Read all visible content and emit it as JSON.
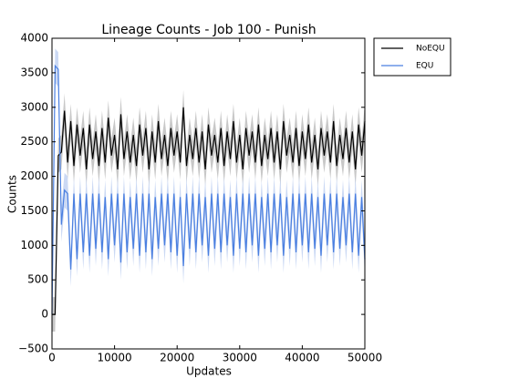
{
  "chart_data": {
    "type": "line",
    "title": "Lineage Counts - Job 100 - Punish",
    "xlabel": "Updates",
    "ylabel": "Counts",
    "xlim": [
      0,
      50000
    ],
    "xticks": [
      0,
      10000,
      20000,
      30000,
      40000,
      50000
    ],
    "ylim": [
      -500,
      4000
    ],
    "yticks": [
      {
        "value": -500,
        "label": "−500"
      },
      0,
      500,
      1000,
      1500,
      2000,
      2500,
      3000,
      3500,
      4000
    ],
    "legend": "outside-upper-right",
    "x": [
      0,
      500,
      1000,
      1500,
      2000,
      2500,
      3000,
      3500,
      4000,
      4500,
      5000,
      5500,
      6000,
      6500,
      7000,
      7500,
      8000,
      8500,
      9000,
      9500,
      10000,
      10500,
      11000,
      11500,
      12000,
      12500,
      13000,
      13500,
      14000,
      14500,
      15000,
      15500,
      16000,
      16500,
      17000,
      17500,
      18000,
      18500,
      19000,
      19500,
      20000,
      20500,
      21000,
      21500,
      22000,
      22500,
      23000,
      23500,
      24000,
      24500,
      25000,
      25500,
      26000,
      26500,
      27000,
      27500,
      28000,
      28500,
      29000,
      29500,
      30000,
      30500,
      31000,
      31500,
      32000,
      32500,
      33000,
      33500,
      34000,
      34500,
      35000,
      35500,
      36000,
      36500,
      37000,
      37500,
      38000,
      38500,
      39000,
      39500,
      40000,
      40500,
      41000,
      41500,
      42000,
      42500,
      43000,
      43500,
      44000,
      44500,
      45000,
      45500,
      46000,
      46500,
      47000,
      47500,
      48000,
      48500,
      49000,
      49500,
      50000
    ],
    "series": [
      {
        "name": "NoEQU",
        "color": "#000000",
        "band_color": "#b0b0b0",
        "spread": 250,
        "values": [
          0,
          0,
          2300,
          2350,
          2950,
          2200,
          2800,
          2150,
          2750,
          2300,
          2700,
          2100,
          2750,
          2250,
          2650,
          2150,
          2700,
          2200,
          2850,
          2300,
          2600,
          2100,
          2900,
          2250,
          2650,
          2200,
          2600,
          2150,
          2750,
          2300,
          2700,
          2100,
          2650,
          2200,
          2800,
          2250,
          2600,
          2150,
          2700,
          2300,
          2650,
          2200,
          3000,
          2150,
          2600,
          2250,
          2700,
          2200,
          2650,
          2100,
          2750,
          2300,
          2600,
          2200,
          2700,
          2150,
          2650,
          2250,
          2800,
          2200,
          2600,
          2100,
          2700,
          2300,
          2650,
          2200,
          2750,
          2150,
          2600,
          2250,
          2700,
          2200,
          2650,
          2100,
          2800,
          2300,
          2600,
          2200,
          2700,
          2150,
          2650,
          2250,
          2750,
          2200,
          2600,
          2100,
          2700,
          2300,
          2650,
          2200,
          2800,
          2150,
          2600,
          2250,
          2700,
          2200,
          2650,
          2100,
          2750,
          2300,
          2800
        ]
      },
      {
        "name": "EQU",
        "color": "#4a7fe0",
        "band_color": "#b5c9f0",
        "spread": 250,
        "values": [
          0,
          3600,
          3550,
          1300,
          1800,
          1750,
          650,
          1750,
          800,
          1750,
          900,
          1750,
          850,
          1750,
          950,
          1750,
          900,
          1700,
          800,
          1750,
          1000,
          1750,
          750,
          1750,
          900,
          1700,
          950,
          1750,
          850,
          1750,
          900,
          1750,
          800,
          1700,
          950,
          1750,
          1000,
          1750,
          900,
          1750,
          850,
          1700,
          700,
          1750,
          950,
          1750,
          900,
          1750,
          1000,
          1700,
          850,
          1750,
          950,
          1750,
          900,
          1750,
          1000,
          1700,
          850,
          1750,
          950,
          1750,
          900,
          1750,
          1000,
          1750,
          850,
          1700,
          950,
          1750,
          900,
          1750,
          1000,
          1750,
          850,
          1700,
          950,
          1750,
          900,
          1750,
          1000,
          1750,
          900,
          1750,
          950,
          1700,
          850,
          1750,
          1000,
          1750,
          900,
          1750,
          950,
          1700,
          1000,
          1750,
          900,
          1750,
          850,
          1700,
          800
        ]
      }
    ]
  }
}
